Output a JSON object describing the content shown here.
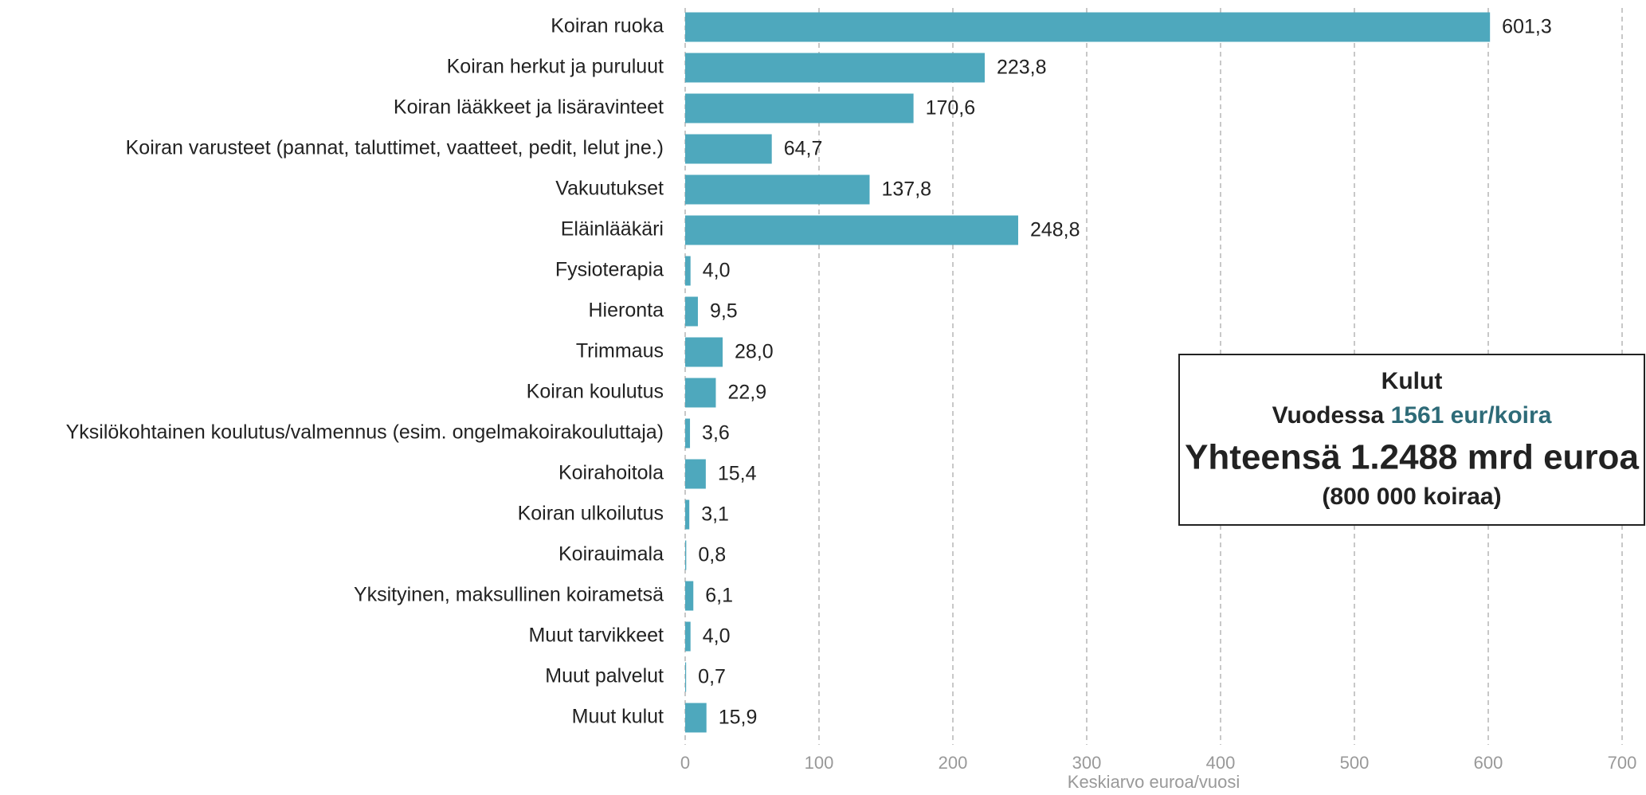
{
  "chart_data": {
    "type": "hbar",
    "categories": [
      "Koiran ruoka",
      "Koiran herkut ja puruluut",
      "Koiran lääkkeet ja lisäravinteet",
      "Koiran varusteet (pannat, taluttimet, vaatteet, pedit, lelut jne.)",
      "Vakuutukset",
      "Eläinlääkäri",
      "Fysioterapia",
      "Hieronta",
      "Trimmaus",
      "Koiran koulutus",
      "Yksilökohtainen koulutus/valmennus (esim. ongelmakoirakouluttaja)",
      "Koirahoitola",
      "Koiran ulkoilutus",
      "Koirauimala",
      "Yksityinen, maksullinen koirametsä",
      "Muut tarvikkeet",
      "Muut palvelut",
      "Muut kulut"
    ],
    "values": [
      601.3,
      223.8,
      170.6,
      64.7,
      137.8,
      248.8,
      4.0,
      9.5,
      28.0,
      22.9,
      3.6,
      15.4,
      3.1,
      0.8,
      6.1,
      4.0,
      0.7,
      15.9
    ],
    "value_labels": [
      "601,3",
      "223,8",
      "170,6",
      "64,7",
      "137,8",
      "248,8",
      "4,0",
      "9,5",
      "28,0",
      "22,9",
      "3,6",
      "15,4",
      "3,1",
      "0,8",
      "6,1",
      "4,0",
      "0,7",
      "15,9"
    ],
    "color": "#4ea8bd",
    "xlim": [
      0,
      700
    ],
    "xticks": [
      0,
      100,
      200,
      300,
      400,
      500,
      600,
      700
    ],
    "grid": true,
    "x_label": "Keskiarvo euroa/vuosi",
    "annotation": {
      "title": "Kulut",
      "line2_prefix": "Vuodessa",
      "line2_highlight": "1561 eur/koira",
      "total": "Yhteensä 1.2488 mrd euroa",
      "count": "(800 000 koiraa)"
    }
  }
}
